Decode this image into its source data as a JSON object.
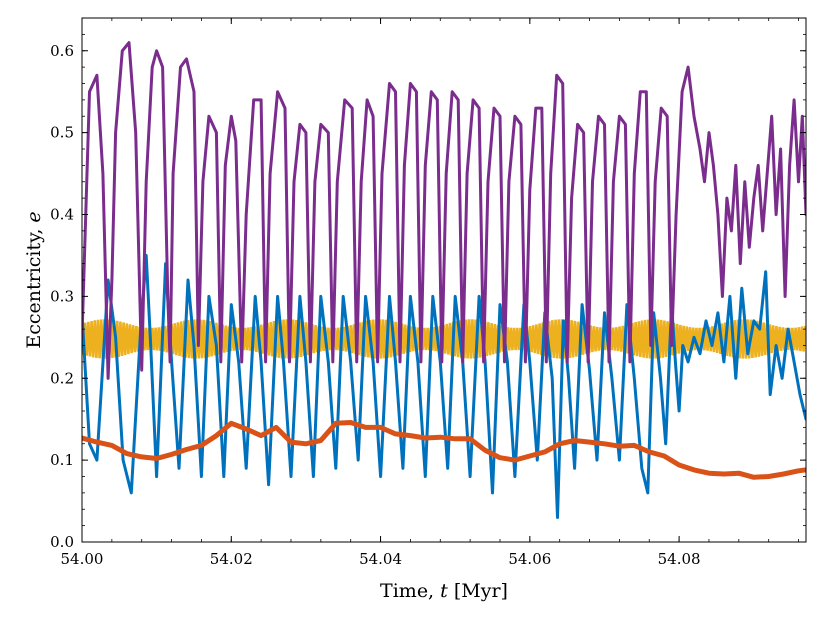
{
  "chart_data": {
    "type": "line",
    "title": "",
    "xlabel": "Time,",
    "xlabel_var": "t",
    "xlabel_unit": "[Myr]",
    "ylabel": "Eccentricity,",
    "ylabel_var": "e",
    "xlim": [
      54.0,
      54.097
    ],
    "ylim": [
      0.0,
      0.64
    ],
    "x_ticks": [
      54.0,
      54.02,
      54.04,
      54.06,
      54.08
    ],
    "x_tick_labels": [
      "54.00",
      "54.02",
      "54.04",
      "54.06",
      "54.08"
    ],
    "y_ticks": [
      0.0,
      0.1,
      0.2,
      0.3,
      0.4,
      0.5,
      0.6
    ],
    "y_tick_labels": [
      "0.0",
      "0.1",
      "0.2",
      "0.3",
      "0.4",
      "0.5",
      "0.6"
    ],
    "grid": false,
    "series": [
      {
        "name": "purple",
        "color": "#7b2d8e",
        "points": [
          [
            54.0,
            0.25
          ],
          [
            54.001,
            0.55
          ],
          [
            54.002,
            0.57
          ],
          [
            54.0028,
            0.45
          ],
          [
            54.0035,
            0.2
          ],
          [
            54.004,
            0.32
          ],
          [
            54.0045,
            0.5
          ],
          [
            54.0054,
            0.6
          ],
          [
            54.0063,
            0.61
          ],
          [
            54.0072,
            0.5
          ],
          [
            54.008,
            0.21
          ],
          [
            54.0086,
            0.44
          ],
          [
            54.0094,
            0.58
          ],
          [
            54.01,
            0.6
          ],
          [
            54.0108,
            0.58
          ],
          [
            54.0115,
            0.3
          ],
          [
            54.0118,
            0.22
          ],
          [
            54.0122,
            0.45
          ],
          [
            54.0132,
            0.58
          ],
          [
            54.014,
            0.59
          ],
          [
            54.015,
            0.55
          ],
          [
            54.0156,
            0.24
          ],
          [
            54.0162,
            0.44
          ],
          [
            54.017,
            0.52
          ],
          [
            54.018,
            0.5
          ],
          [
            54.0186,
            0.22
          ],
          [
            54.0192,
            0.46
          ],
          [
            54.02,
            0.52
          ],
          [
            54.0206,
            0.49
          ],
          [
            54.0214,
            0.22
          ],
          [
            54.022,
            0.4
          ],
          [
            54.023,
            0.54
          ],
          [
            54.024,
            0.54
          ],
          [
            54.0246,
            0.22
          ],
          [
            54.0252,
            0.45
          ],
          [
            54.0262,
            0.55
          ],
          [
            54.0272,
            0.53
          ],
          [
            54.0278,
            0.22
          ],
          [
            54.0284,
            0.44
          ],
          [
            54.0292,
            0.51
          ],
          [
            54.03,
            0.5
          ],
          [
            54.0306,
            0.22
          ],
          [
            54.0312,
            0.44
          ],
          [
            54.032,
            0.51
          ],
          [
            54.033,
            0.5
          ],
          [
            54.0336,
            0.22
          ],
          [
            54.0342,
            0.44
          ],
          [
            54.0352,
            0.54
          ],
          [
            54.0362,
            0.53
          ],
          [
            54.0368,
            0.22
          ],
          [
            54.0374,
            0.44
          ],
          [
            54.0382,
            0.54
          ],
          [
            54.039,
            0.52
          ],
          [
            54.0396,
            0.22
          ],
          [
            54.0402,
            0.45
          ],
          [
            54.0412,
            0.56
          ],
          [
            54.042,
            0.55
          ],
          [
            54.0426,
            0.22
          ],
          [
            54.0432,
            0.46
          ],
          [
            54.044,
            0.56
          ],
          [
            54.0448,
            0.55
          ],
          [
            54.0454,
            0.22
          ],
          [
            54.046,
            0.46
          ],
          [
            54.0468,
            0.55
          ],
          [
            54.0476,
            0.54
          ],
          [
            54.0482,
            0.22
          ],
          [
            54.0488,
            0.45
          ],
          [
            54.0496,
            0.55
          ],
          [
            54.0504,
            0.54
          ],
          [
            54.051,
            0.22
          ],
          [
            54.0516,
            0.45
          ],
          [
            54.0524,
            0.54
          ],
          [
            54.0532,
            0.53
          ],
          [
            54.0538,
            0.22
          ],
          [
            54.0544,
            0.44
          ],
          [
            54.0552,
            0.53
          ],
          [
            54.056,
            0.52
          ],
          [
            54.0566,
            0.22
          ],
          [
            54.0572,
            0.44
          ],
          [
            54.058,
            0.52
          ],
          [
            54.0588,
            0.51
          ],
          [
            54.0594,
            0.22
          ],
          [
            54.06,
            0.43
          ],
          [
            54.0608,
            0.53
          ],
          [
            54.0616,
            0.53
          ],
          [
            54.0622,
            0.22
          ],
          [
            54.0628,
            0.45
          ],
          [
            54.0636,
            0.57
          ],
          [
            54.0644,
            0.56
          ],
          [
            54.065,
            0.22
          ],
          [
            54.0656,
            0.42
          ],
          [
            54.0664,
            0.51
          ],
          [
            54.0672,
            0.5
          ],
          [
            54.0678,
            0.22
          ],
          [
            54.0684,
            0.44
          ],
          [
            54.0692,
            0.52
          ],
          [
            54.07,
            0.51
          ],
          [
            54.0706,
            0.22
          ],
          [
            54.0712,
            0.44
          ],
          [
            54.072,
            0.52
          ],
          [
            54.0728,
            0.51
          ],
          [
            54.0734,
            0.22
          ],
          [
            54.074,
            0.45
          ],
          [
            54.0748,
            0.55
          ],
          [
            54.0756,
            0.55
          ],
          [
            54.0762,
            0.24
          ],
          [
            54.0768,
            0.44
          ],
          [
            54.0776,
            0.53
          ],
          [
            54.0784,
            0.52
          ],
          [
            54.079,
            0.24
          ],
          [
            54.0796,
            0.4
          ],
          [
            54.0804,
            0.55
          ],
          [
            54.0812,
            0.58
          ],
          [
            54.082,
            0.52
          ],
          [
            54.0828,
            0.48
          ],
          [
            54.0834,
            0.44
          ],
          [
            54.084,
            0.5
          ],
          [
            54.0846,
            0.46
          ],
          [
            54.0852,
            0.4
          ],
          [
            54.0858,
            0.3
          ],
          [
            54.0864,
            0.42
          ],
          [
            54.087,
            0.38
          ],
          [
            54.0876,
            0.46
          ],
          [
            54.0882,
            0.34
          ],
          [
            54.0888,
            0.44
          ],
          [
            54.0894,
            0.36
          ],
          [
            54.09,
            0.42
          ],
          [
            54.0906,
            0.46
          ],
          [
            54.0912,
            0.38
          ],
          [
            54.0918,
            0.45
          ],
          [
            54.0924,
            0.52
          ],
          [
            54.093,
            0.4
          ],
          [
            54.0936,
            0.48
          ],
          [
            54.0942,
            0.3
          ],
          [
            54.0948,
            0.46
          ],
          [
            54.0954,
            0.54
          ],
          [
            54.096,
            0.44
          ],
          [
            54.0965,
            0.52
          ],
          [
            54.097,
            0.4
          ]
        ]
      },
      {
        "name": "blue",
        "color": "#0072bd",
        "points": [
          [
            54.0,
            0.28
          ],
          [
            54.001,
            0.12
          ],
          [
            54.002,
            0.1
          ],
          [
            54.0035,
            0.32
          ],
          [
            54.0045,
            0.25
          ],
          [
            54.0055,
            0.1
          ],
          [
            54.0066,
            0.06
          ],
          [
            54.0078,
            0.25
          ],
          [
            54.0086,
            0.35
          ],
          [
            54.0092,
            0.24
          ],
          [
            54.01,
            0.08
          ],
          [
            54.0112,
            0.34
          ],
          [
            54.012,
            0.22
          ],
          [
            54.013,
            0.09
          ],
          [
            54.0142,
            0.32
          ],
          [
            54.015,
            0.24
          ],
          [
            54.016,
            0.08
          ],
          [
            54.017,
            0.3
          ],
          [
            54.018,
            0.24
          ],
          [
            54.019,
            0.08
          ],
          [
            54.02,
            0.29
          ],
          [
            54.021,
            0.22
          ],
          [
            54.022,
            0.09
          ],
          [
            54.0232,
            0.3
          ],
          [
            54.024,
            0.22
          ],
          [
            54.025,
            0.07
          ],
          [
            54.0262,
            0.3
          ],
          [
            54.027,
            0.22
          ],
          [
            54.028,
            0.08
          ],
          [
            54.0292,
            0.3
          ],
          [
            54.03,
            0.22
          ],
          [
            54.031,
            0.08
          ],
          [
            54.032,
            0.3
          ],
          [
            54.033,
            0.22
          ],
          [
            54.034,
            0.09
          ],
          [
            54.035,
            0.3
          ],
          [
            54.036,
            0.22
          ],
          [
            54.037,
            0.1
          ],
          [
            54.038,
            0.3
          ],
          [
            54.039,
            0.22
          ],
          [
            54.04,
            0.08
          ],
          [
            54.0412,
            0.3
          ],
          [
            54.042,
            0.22
          ],
          [
            54.043,
            0.09
          ],
          [
            54.044,
            0.3
          ],
          [
            54.045,
            0.22
          ],
          [
            54.046,
            0.08
          ],
          [
            54.047,
            0.3
          ],
          [
            54.048,
            0.22
          ],
          [
            54.049,
            0.09
          ],
          [
            54.05,
            0.3
          ],
          [
            54.051,
            0.22
          ],
          [
            54.052,
            0.08
          ],
          [
            54.0532,
            0.3
          ],
          [
            54.054,
            0.22
          ],
          [
            54.055,
            0.06
          ],
          [
            54.056,
            0.29
          ],
          [
            54.057,
            0.22
          ],
          [
            54.058,
            0.08
          ],
          [
            54.0592,
            0.29
          ],
          [
            54.06,
            0.22
          ],
          [
            54.061,
            0.1
          ],
          [
            54.062,
            0.28
          ],
          [
            54.063,
            0.2
          ],
          [
            54.0637,
            0.03
          ],
          [
            54.0645,
            0.27
          ],
          [
            54.0652,
            0.2
          ],
          [
            54.066,
            0.09
          ],
          [
            54.067,
            0.29
          ],
          [
            54.068,
            0.21
          ],
          [
            54.069,
            0.1
          ],
          [
            54.07,
            0.28
          ],
          [
            54.071,
            0.2
          ],
          [
            54.072,
            0.1
          ],
          [
            54.073,
            0.29
          ],
          [
            54.074,
            0.2
          ],
          [
            54.075,
            0.09
          ],
          [
            54.0758,
            0.06
          ],
          [
            54.0766,
            0.28
          ],
          [
            54.0775,
            0.2
          ],
          [
            54.0782,
            0.12
          ],
          [
            54.079,
            0.29
          ],
          [
            54.0795,
            0.22
          ],
          [
            54.08,
            0.16
          ],
          [
            54.0805,
            0.24
          ],
          [
            54.0812,
            0.22
          ],
          [
            54.082,
            0.25
          ],
          [
            54.0828,
            0.23
          ],
          [
            54.0836,
            0.27
          ],
          [
            54.0844,
            0.24
          ],
          [
            54.0852,
            0.28
          ],
          [
            54.086,
            0.22
          ],
          [
            54.0868,
            0.3
          ],
          [
            54.0876,
            0.2
          ],
          [
            54.0884,
            0.31
          ],
          [
            54.0892,
            0.23
          ],
          [
            54.09,
            0.27
          ],
          [
            54.0908,
            0.26
          ],
          [
            54.0916,
            0.33
          ],
          [
            54.0922,
            0.18
          ],
          [
            54.093,
            0.24
          ],
          [
            54.0938,
            0.2
          ],
          [
            54.0946,
            0.26
          ],
          [
            54.0954,
            0.22
          ],
          [
            54.0962,
            0.18
          ],
          [
            54.097,
            0.15
          ]
        ]
      },
      {
        "name": "orange",
        "color": "#d95319",
        "points": [
          [
            54.0,
            0.127
          ],
          [
            54.002,
            0.122
          ],
          [
            54.004,
            0.118
          ],
          [
            54.006,
            0.108
          ],
          [
            54.008,
            0.104
          ],
          [
            54.01,
            0.102
          ],
          [
            54.012,
            0.107
          ],
          [
            54.014,
            0.113
          ],
          [
            54.016,
            0.118
          ],
          [
            54.018,
            0.13
          ],
          [
            54.02,
            0.145
          ],
          [
            54.022,
            0.138
          ],
          [
            54.024,
            0.13
          ],
          [
            54.026,
            0.14
          ],
          [
            54.028,
            0.122
          ],
          [
            54.03,
            0.12
          ],
          [
            54.032,
            0.124
          ],
          [
            54.034,
            0.145
          ],
          [
            54.036,
            0.146
          ],
          [
            54.038,
            0.14
          ],
          [
            54.04,
            0.14
          ],
          [
            54.042,
            0.132
          ],
          [
            54.044,
            0.13
          ],
          [
            54.046,
            0.127
          ],
          [
            54.048,
            0.128
          ],
          [
            54.05,
            0.126
          ],
          [
            54.052,
            0.126
          ],
          [
            54.054,
            0.112
          ],
          [
            54.056,
            0.103
          ],
          [
            54.058,
            0.1
          ],
          [
            54.06,
            0.105
          ],
          [
            54.062,
            0.11
          ],
          [
            54.064,
            0.12
          ],
          [
            54.066,
            0.124
          ],
          [
            54.068,
            0.122
          ],
          [
            54.07,
            0.12
          ],
          [
            54.072,
            0.117
          ],
          [
            54.074,
            0.118
          ],
          [
            54.076,
            0.11
          ],
          [
            54.078,
            0.105
          ],
          [
            54.08,
            0.094
          ],
          [
            54.082,
            0.088
          ],
          [
            54.084,
            0.084
          ],
          [
            54.086,
            0.083
          ],
          [
            54.088,
            0.084
          ],
          [
            54.09,
            0.079
          ],
          [
            54.092,
            0.08
          ],
          [
            54.094,
            0.083
          ],
          [
            54.096,
            0.087
          ],
          [
            54.097,
            0.088
          ]
        ]
      },
      {
        "name": "yellow",
        "color": "#edb120",
        "center": 0.248,
        "band_upper": 0.272,
        "band_lower": 0.224,
        "x_range": [
          54.0,
          54.097
        ]
      }
    ]
  }
}
